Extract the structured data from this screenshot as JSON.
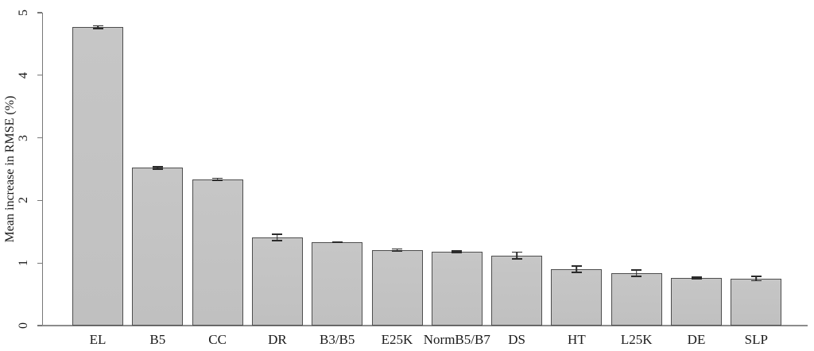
{
  "figure": {
    "background": "#ffffff"
  },
  "chart_data": {
    "type": "bar",
    "title": "",
    "xlabel": "",
    "ylabel": "Mean increase in RMSE (%)",
    "ylim": [
      0,
      5
    ],
    "yticks": [
      0,
      1,
      2,
      3,
      4,
      5
    ],
    "grid": false,
    "legend": null,
    "bar_fill": "#c3c3c3",
    "bar_border": "#4e4e4e",
    "error_color": "#2b2b2b",
    "axis_color": "#787878",
    "categories": [
      "EL",
      "B5",
      "CC",
      "DR",
      "B3/B5",
      "E25K",
      "NormB5/B7",
      "DS",
      "HT",
      "L25K",
      "DE",
      "SLP"
    ],
    "values": [
      4.77,
      2.52,
      2.34,
      1.41,
      1.33,
      1.21,
      1.18,
      1.12,
      0.9,
      0.84,
      0.76,
      0.75
    ],
    "errors": [
      0.03,
      0.03,
      0.025,
      0.06,
      0.015,
      0.025,
      0.02,
      0.065,
      0.06,
      0.06,
      0.025,
      0.045
    ]
  }
}
